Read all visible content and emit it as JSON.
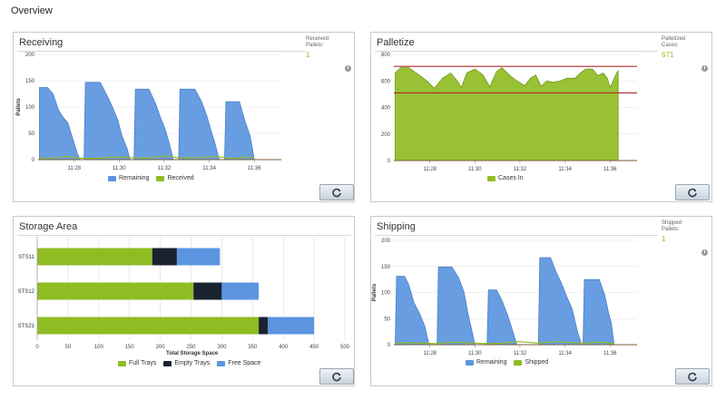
{
  "page": {
    "title": "Overview"
  },
  "colors": {
    "blue": "#5b95e0",
    "green": "#8fbc23",
    "dark": "#1a2330",
    "red": "#b02a2a",
    "stat_green": "#99b82e"
  },
  "icons": {
    "info": "info-icon",
    "refresh": "refresh-icon"
  },
  "receiving": {
    "title": "Receiving",
    "stat_label": [
      "Received",
      "Pallets:"
    ],
    "stat_value": "1",
    "ylabel": "Pallets",
    "legend": [
      "Remaining",
      "Received"
    ]
  },
  "palletize": {
    "title": "Palletize",
    "stat_label": [
      "Palletized",
      "Cases:"
    ],
    "stat_value": "671",
    "legend": [
      "Cases In"
    ]
  },
  "storage": {
    "title": "Storage Area",
    "xlabel": "Total Storage Space",
    "legend": [
      "Full Trays",
      "Empty Trays",
      "Free Space"
    ]
  },
  "shipping": {
    "title": "Shipping",
    "stat_label": [
      "Shipped",
      "Pallets:"
    ],
    "stat_value": "1",
    "ylabel": "Pallets",
    "legend": [
      "Remaining",
      "Shipped"
    ]
  },
  "chart_data": [
    {
      "id": "receiving",
      "type": "area",
      "ylabel": "Pallets",
      "ylim": [
        0,
        200
      ],
      "y_ticks": [
        "0",
        "50",
        "100",
        "150",
        "200"
      ],
      "x_ticks": [
        "11:28",
        "11:30",
        "11:32",
        "11:34",
        "11:36"
      ],
      "x_tick_positions": [
        11.4667,
        11.5,
        11.5333,
        11.5667,
        11.6
      ],
      "xlim": [
        11.44,
        11.62
      ],
      "series": [
        {
          "name": "Remaining",
          "points": [
            [
              11.441,
              137
            ],
            [
              11.447,
              137
            ],
            [
              11.451,
              125
            ],
            [
              11.455,
              95
            ],
            [
              11.458,
              82
            ],
            [
              11.462,
              70
            ],
            [
              11.465,
              45
            ],
            [
              11.469,
              12
            ],
            [
              11.471,
              0
            ],
            [
              11.474,
              0
            ],
            [
              11.475,
              147
            ],
            [
              11.486,
              147
            ],
            [
              11.491,
              122
            ],
            [
              11.495,
              100
            ],
            [
              11.499,
              75
            ],
            [
              11.502,
              46
            ],
            [
              11.506,
              20
            ],
            [
              11.508,
              0
            ],
            [
              11.511,
              0
            ],
            [
              11.512,
              134
            ],
            [
              11.522,
              134
            ],
            [
              11.527,
              106
            ],
            [
              11.53,
              84
            ],
            [
              11.534,
              58
            ],
            [
              11.537,
              32
            ],
            [
              11.54,
              0
            ],
            [
              11.544,
              0
            ],
            [
              11.545,
              134
            ],
            [
              11.556,
              134
            ],
            [
              11.561,
              110
            ],
            [
              11.565,
              82
            ],
            [
              11.568,
              55
            ],
            [
              11.571,
              30
            ],
            [
              11.574,
              0
            ],
            [
              11.578,
              0
            ],
            [
              11.579,
              110
            ],
            [
              11.589,
              110
            ],
            [
              11.593,
              74
            ],
            [
              11.597,
              44
            ],
            [
              11.6,
              0
            ]
          ]
        },
        {
          "name": "Received",
          "points": [
            [
              11.441,
              2
            ],
            [
              11.455,
              4
            ],
            [
              11.462,
              6
            ],
            [
              11.47,
              3
            ],
            [
              11.48,
              2
            ],
            [
              11.498,
              5
            ],
            [
              11.507,
              4
            ],
            [
              11.52,
              3
            ],
            [
              11.535,
              7
            ],
            [
              11.545,
              3
            ],
            [
              11.56,
              4
            ],
            [
              11.57,
              6
            ],
            [
              11.585,
              2
            ],
            [
              11.595,
              5
            ],
            [
              11.6,
              2
            ]
          ]
        }
      ]
    },
    {
      "id": "palletize",
      "type": "area",
      "ylim": [
        0,
        800
      ],
      "y_ticks": [
        "0",
        "200",
        "400",
        "600",
        "800"
      ],
      "x_ticks": [
        "11:28",
        "11:30",
        "11:32",
        "11:34",
        "11:36"
      ],
      "x_tick_positions": [
        11.4667,
        11.5,
        11.5333,
        11.5667,
        11.6
      ],
      "xlim": [
        11.44,
        11.62
      ],
      "reference_lines": [
        710,
        510
      ],
      "series": [
        {
          "name": "Cases In",
          "points": [
            [
              11.441,
              660
            ],
            [
              11.445,
              700
            ],
            [
              11.451,
              700
            ],
            [
              11.458,
              650
            ],
            [
              11.465,
              595
            ],
            [
              11.47,
              545
            ],
            [
              11.476,
              620
            ],
            [
              11.482,
              660
            ],
            [
              11.487,
              600
            ],
            [
              11.49,
              550
            ],
            [
              11.494,
              660
            ],
            [
              11.5,
              690
            ],
            [
              11.506,
              645
            ],
            [
              11.511,
              555
            ],
            [
              11.516,
              670
            ],
            [
              11.52,
              700
            ],
            [
              11.526,
              640
            ],
            [
              11.531,
              600
            ],
            [
              11.537,
              565
            ],
            [
              11.541,
              620
            ],
            [
              11.545,
              645
            ],
            [
              11.549,
              560
            ],
            [
              11.553,
              600
            ],
            [
              11.558,
              590
            ],
            [
              11.563,
              600
            ],
            [
              11.568,
              620
            ],
            [
              11.574,
              620
            ],
            [
              11.578,
              660
            ],
            [
              11.582,
              690
            ],
            [
              11.587,
              690
            ],
            [
              11.591,
              640
            ],
            [
              11.595,
              660
            ],
            [
              11.598,
              620
            ],
            [
              11.6,
              550
            ],
            [
              11.604,
              640
            ],
            [
              11.606,
              680
            ]
          ]
        }
      ]
    },
    {
      "id": "storage",
      "type": "bar",
      "orientation": "horizontal",
      "stacked": true,
      "categories": [
        "STS11",
        "STS12",
        "STS21"
      ],
      "xlabel": "Total Storage Space",
      "xlim": [
        0,
        500
      ],
      "x_ticks": [
        "0",
        "50",
        "100",
        "150",
        "200",
        "250",
        "300",
        "350",
        "400",
        "450",
        "500"
      ],
      "series": [
        {
          "name": "Full Trays",
          "values": [
            187,
            254,
            360
          ]
        },
        {
          "name": "Empty Trays",
          "values": [
            40,
            46,
            15
          ]
        },
        {
          "name": "Free Space",
          "values": [
            70,
            60,
            75
          ]
        }
      ]
    },
    {
      "id": "shipping",
      "type": "area",
      "ylabel": "Pallets",
      "ylim": [
        0,
        200
      ],
      "y_ticks": [
        "0",
        "50",
        "100",
        "150",
        "200"
      ],
      "x_ticks": [
        "11:28",
        "11:30",
        "11:32",
        "11:34",
        "11:36"
      ],
      "x_tick_positions": [
        11.4667,
        11.5,
        11.5333,
        11.5667,
        11.6
      ],
      "xlim": [
        11.44,
        11.62
      ],
      "series": [
        {
          "name": "Remaining",
          "points": [
            [
              11.441,
              0
            ],
            [
              11.442,
              131
            ],
            [
              11.448,
              131
            ],
            [
              11.451,
              115
            ],
            [
              11.455,
              80
            ],
            [
              11.459,
              60
            ],
            [
              11.463,
              35
            ],
            [
              11.466,
              0
            ],
            [
              11.472,
              0
            ],
            [
              11.473,
              149
            ],
            [
              11.483,
              149
            ],
            [
              11.488,
              128
            ],
            [
              11.492,
              100
            ],
            [
              11.495,
              58
            ],
            [
              11.498,
              24
            ],
            [
              11.5,
              0
            ],
            [
              11.509,
              0
            ],
            [
              11.51,
              105
            ],
            [
              11.516,
              105
            ],
            [
              11.52,
              85
            ],
            [
              11.524,
              58
            ],
            [
              11.527,
              34
            ],
            [
              11.531,
              0
            ],
            [
              11.547,
              0
            ],
            [
              11.548,
              167
            ],
            [
              11.556,
              167
            ],
            [
              11.56,
              140
            ],
            [
              11.564,
              118
            ],
            [
              11.568,
              92
            ],
            [
              11.572,
              68
            ],
            [
              11.576,
              24
            ],
            [
              11.579,
              0
            ],
            [
              11.58,
              0
            ],
            [
              11.581,
              125
            ],
            [
              11.592,
              125
            ],
            [
              11.596,
              96
            ],
            [
              11.599,
              60
            ],
            [
              11.601,
              40
            ],
            [
              11.603,
              0
            ]
          ]
        },
        {
          "name": "Shipped",
          "points": [
            [
              11.441,
              2
            ],
            [
              11.447,
              4
            ],
            [
              11.458,
              3
            ],
            [
              11.471,
              2
            ],
            [
              11.484,
              5
            ],
            [
              11.497,
              3
            ],
            [
              11.51,
              2
            ],
            [
              11.522,
              3
            ],
            [
              11.531,
              6
            ],
            [
              11.547,
              3
            ],
            [
              11.56,
              6
            ],
            [
              11.57,
              4
            ],
            [
              11.582,
              3
            ],
            [
              11.592,
              5
            ],
            [
              11.603,
              2
            ]
          ]
        }
      ]
    }
  ]
}
